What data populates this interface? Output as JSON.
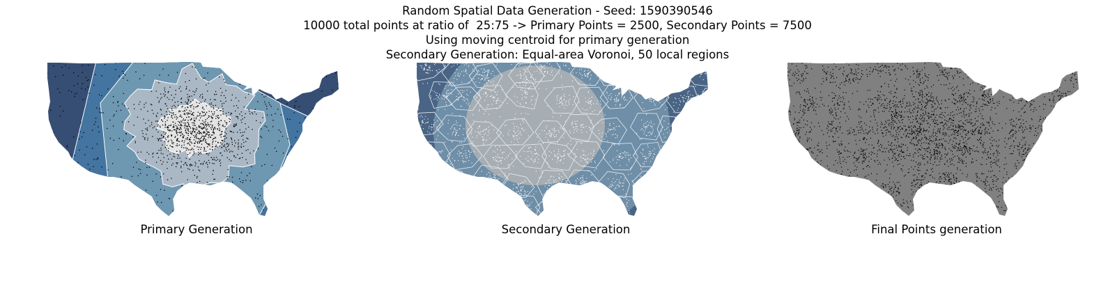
{
  "title": {
    "lines": [
      "Random Spatial Data Generation - Seed: 1590390546",
      "10000 total points at ratio of  25:75 -> Primary Points = 2500, Secondary Points = 7500",
      "Using moving centroid for primary generation",
      "Secondary Generation: Equal-area Voronoi, 50 local regions"
    ]
  },
  "panels": [
    {
      "caption": "Primary Generation",
      "colors": {
        "zone_outer": "#364e73",
        "zone_second": "#4474a0",
        "zone_middle": "#6e97b1",
        "zone_inner": "#aab8c5",
        "zone_core": "#e4e4e4",
        "boundary": "#ffffff",
        "points": "#000000"
      }
    },
    {
      "caption": "Secondary Generation",
      "colors": {
        "regions_edge": "#4a6485",
        "regions_mid": "#6f8ea7",
        "regions_center": "#a6aeb3",
        "boundary": "#e8edf2",
        "points": "#ffffff"
      }
    },
    {
      "caption": "Final Points generation",
      "colors": {
        "land": "#808080",
        "points": "#000000"
      }
    }
  ],
  "sample_counts": {
    "primary_points": 2500,
    "secondary_points": 7500,
    "total_points": 10000,
    "local_regions": 50
  }
}
